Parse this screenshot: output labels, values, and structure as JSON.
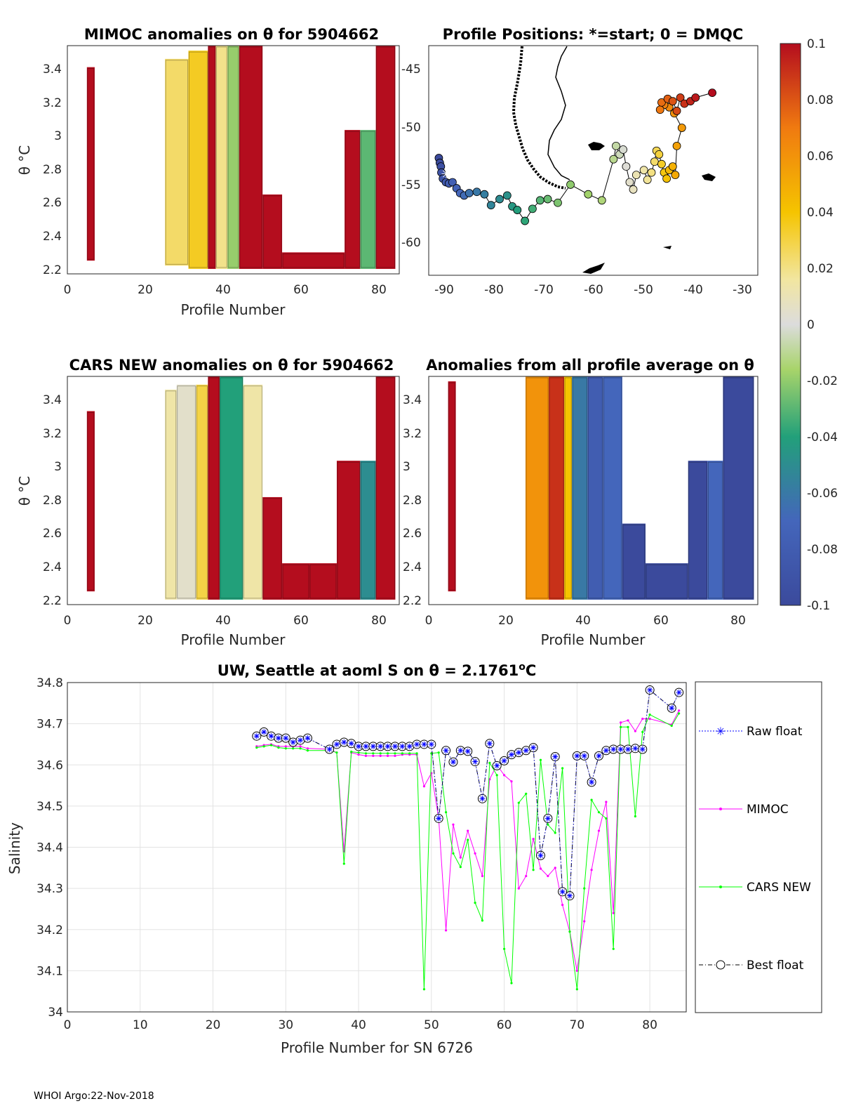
{
  "footer": "WHOI Argo:22-Nov-2018",
  "panels": {
    "mimoc": {
      "title": "MIMOC anomalies on θ  for 5904662",
      "xlabel": "Profile Number",
      "ylabel": "θ °C",
      "xticks": [
        "0",
        "20",
        "40",
        "60",
        "80"
      ],
      "yticks": [
        "3.4",
        "3.2",
        "3",
        "2.8",
        "2.6",
        "2.4",
        "2.2"
      ]
    },
    "map": {
      "title": "Profile Positions: *=start; 0 = DMQC",
      "xticks": [
        "-90",
        "-80",
        "-70",
        "-60",
        "-50",
        "-40",
        "-30"
      ],
      "yticks": [
        "-45",
        "-50",
        "-55",
        "-60"
      ]
    },
    "cars": {
      "title": "CARS NEW anomalies on θ for 5904662",
      "xlabel": "Profile Number",
      "ylabel": "θ °C",
      "xticks": [
        "0",
        "20",
        "40",
        "60",
        "80"
      ],
      "yticks": [
        "3.4",
        "3.2",
        "3",
        "2.8",
        "2.6",
        "2.4",
        "2.2"
      ]
    },
    "avg": {
      "title": "Anomalies from all profile average on θ",
      "xlabel": "Profile Number",
      "xticks": [
        "0",
        "20",
        "40",
        "60",
        "80"
      ],
      "yticks": [
        "3.4",
        "3.2",
        "3",
        "2.8",
        "2.6",
        "2.4",
        "2.2"
      ]
    },
    "colorbar": {
      "ticks": [
        "0.1",
        "0.08",
        "0.06",
        "0.04",
        "0.02",
        "0",
        "-0.02",
        "-0.04",
        "-0.06",
        "-0.08",
        "-0.1"
      ]
    }
  },
  "chart_data": [
    {
      "type": "heatmap",
      "title": "MIMOC anomalies on θ  for 5904662",
      "xlabel": "Profile Number",
      "ylabel": "θ °C",
      "xlim": [
        0,
        85
      ],
      "ylim": [
        2.15,
        3.53
      ],
      "clim": [
        -0.1,
        0.1
      ],
      "columns": [
        {
          "x0": 5,
          "x1": 7,
          "y0": 2.23,
          "y1": 3.4,
          "v": 0.1
        },
        {
          "x0": 25,
          "x1": 31,
          "y0": 2.2,
          "y1": 3.45,
          "v": 0.025
        },
        {
          "x0": 31,
          "x1": 36,
          "y0": 2.18,
          "y1": 3.5,
          "v": 0.035
        },
        {
          "x0": 36,
          "x1": 38,
          "y0": 2.18,
          "y1": 3.53,
          "v": 0.1
        },
        {
          "x0": 38,
          "x1": 41,
          "y0": 2.18,
          "y1": 3.53,
          "v": 0.02
        },
        {
          "x0": 41,
          "x1": 44,
          "y0": 2.18,
          "y1": 3.53,
          "v": -0.02
        },
        {
          "x0": 44,
          "x1": 50,
          "y0": 2.18,
          "y1": 3.53,
          "v": 0.1
        },
        {
          "x0": 50,
          "x1": 55,
          "y0": 2.18,
          "y1": 2.63,
          "v": 0.1
        },
        {
          "x0": 55,
          "x1": 71,
          "y0": 2.18,
          "y1": 2.28,
          "v": 0.1
        },
        {
          "x0": 71,
          "x1": 75,
          "y0": 2.18,
          "y1": 3.02,
          "v": 0.1
        },
        {
          "x0": 75,
          "x1": 79,
          "y0": 2.18,
          "y1": 3.02,
          "v": -0.03
        },
        {
          "x0": 79,
          "x1": 84,
          "y0": 2.18,
          "y1": 3.53,
          "v": 0.1
        }
      ]
    },
    {
      "type": "scatter",
      "title": "Profile Positions: *=start; 0 = DMQC",
      "xlim": [
        -92,
        -27
      ],
      "ylim": [
        -63,
        -44
      ],
      "color_by": "profile number",
      "points": [
        {
          "lon": -90.0,
          "lat": -53.3
        },
        {
          "lon": -89.8,
          "lat": -53.7
        },
        {
          "lon": -89.6,
          "lat": -54.0
        },
        {
          "lon": -89.5,
          "lat": -54.5
        },
        {
          "lon": -89.2,
          "lat": -55.0
        },
        {
          "lon": -88.6,
          "lat": -55.3
        },
        {
          "lon": -88.0,
          "lat": -55.4
        },
        {
          "lon": -87.3,
          "lat": -55.3
        },
        {
          "lon": -86.5,
          "lat": -55.8
        },
        {
          "lon": -85.8,
          "lat": -56.2
        },
        {
          "lon": -85.0,
          "lat": -56.4
        },
        {
          "lon": -84.0,
          "lat": -56.2
        },
        {
          "lon": -82.5,
          "lat": -56.1
        },
        {
          "lon": -81.0,
          "lat": -56.3
        },
        {
          "lon": -79.7,
          "lat": -57.2
        },
        {
          "lon": -78.0,
          "lat": -56.7
        },
        {
          "lon": -76.5,
          "lat": -56.4
        },
        {
          "lon": -75.5,
          "lat": -57.3
        },
        {
          "lon": -74.5,
          "lat": -57.6
        },
        {
          "lon": -73.0,
          "lat": -58.5
        },
        {
          "lon": -71.5,
          "lat": -57.5
        },
        {
          "lon": -70.0,
          "lat": -56.8
        },
        {
          "lon": -68.5,
          "lat": -56.7
        },
        {
          "lon": -66.5,
          "lat": -57.0
        },
        {
          "lon": -64.0,
          "lat": -55.5
        },
        {
          "lon": -60.5,
          "lat": -56.3
        },
        {
          "lon": -57.8,
          "lat": -56.8
        },
        {
          "lon": -55.5,
          "lat": -53.4
        },
        {
          "lon": -55.0,
          "lat": -52.3
        },
        {
          "lon": -54.3,
          "lat": -53.0
        },
        {
          "lon": -53.6,
          "lat": -52.6
        },
        {
          "lon": -53.0,
          "lat": -54.0
        },
        {
          "lon": -52.3,
          "lat": -55.3
        },
        {
          "lon": -51.6,
          "lat": -55.9
        },
        {
          "lon": -51.0,
          "lat": -54.7
        },
        {
          "lon": -49.5,
          "lat": -54.3
        },
        {
          "lon": -48.8,
          "lat": -55.1
        },
        {
          "lon": -48.0,
          "lat": -54.5
        },
        {
          "lon": -47.4,
          "lat": -53.6
        },
        {
          "lon": -47.0,
          "lat": -52.7
        },
        {
          "lon": -46.5,
          "lat": -53.0
        },
        {
          "lon": -46.0,
          "lat": -53.8
        },
        {
          "lon": -45.5,
          "lat": -54.5
        },
        {
          "lon": -45.0,
          "lat": -55.0
        },
        {
          "lon": -44.5,
          "lat": -54.3
        },
        {
          "lon": -43.8,
          "lat": -54.0
        },
        {
          "lon": -43.3,
          "lat": -54.7
        },
        {
          "lon": -43.0,
          "lat": -52.3
        },
        {
          "lon": -42.0,
          "lat": -50.8
        },
        {
          "lon": -43.5,
          "lat": -49.6
        },
        {
          "lon": -44.5,
          "lat": -49.1
        },
        {
          "lon": -45.5,
          "lat": -48.9
        },
        {
          "lon": -46.3,
          "lat": -49.3
        },
        {
          "lon": -46.0,
          "lat": -48.7
        },
        {
          "lon": -44.8,
          "lat": -48.4
        },
        {
          "lon": -43.8,
          "lat": -48.6
        },
        {
          "lon": -43.0,
          "lat": -49.4
        },
        {
          "lon": -42.3,
          "lat": -48.3
        },
        {
          "lon": -41.5,
          "lat": -48.8
        },
        {
          "lon": -40.3,
          "lat": -48.6
        },
        {
          "lon": -39.3,
          "lat": -48.3
        },
        {
          "lon": -36.0,
          "lat": -47.9
        }
      ]
    },
    {
      "type": "heatmap",
      "title": "CARS NEW anomalies on θ for 5904662",
      "xlabel": "Profile Number",
      "ylabel": "θ °C",
      "xlim": [
        0,
        85
      ],
      "ylim": [
        2.15,
        3.53
      ],
      "clim": [
        -0.1,
        0.1
      ],
      "columns": [
        {
          "x0": 5,
          "x1": 7,
          "y0": 2.23,
          "y1": 3.32,
          "v": 0.1
        },
        {
          "x0": 25,
          "x1": 28,
          "y0": 2.18,
          "y1": 3.45,
          "v": 0.015
        },
        {
          "x0": 28,
          "x1": 33,
          "y0": 2.18,
          "y1": 3.48,
          "v": 0.005
        },
        {
          "x0": 33,
          "x1": 36,
          "y0": 2.18,
          "y1": 3.48,
          "v": 0.03
        },
        {
          "x0": 36,
          "x1": 39,
          "y0": 2.18,
          "y1": 3.53,
          "v": 0.1
        },
        {
          "x0": 39,
          "x1": 45,
          "y0": 2.18,
          "y1": 3.53,
          "v": -0.04
        },
        {
          "x0": 45,
          "x1": 50,
          "y0": 2.18,
          "y1": 3.48,
          "v": 0.015
        },
        {
          "x0": 50,
          "x1": 55,
          "y0": 2.18,
          "y1": 2.8,
          "v": 0.1
        },
        {
          "x0": 55,
          "x1": 62,
          "y0": 2.18,
          "y1": 2.4,
          "v": 0.1
        },
        {
          "x0": 62,
          "x1": 69,
          "y0": 2.18,
          "y1": 2.4,
          "v": 0.1
        },
        {
          "x0": 69,
          "x1": 75,
          "y0": 2.18,
          "y1": 3.02,
          "v": 0.1
        },
        {
          "x0": 75,
          "x1": 79,
          "y0": 2.18,
          "y1": 3.02,
          "v": -0.05
        },
        {
          "x0": 79,
          "x1": 84,
          "y0": 2.18,
          "y1": 3.53,
          "v": 0.1
        }
      ]
    },
    {
      "type": "heatmap",
      "title": "Anomalies from all profile average on θ",
      "xlabel": "Profile Number",
      "xlim": [
        0,
        85
      ],
      "ylim": [
        2.15,
        3.53
      ],
      "clim": [
        -0.1,
        0.1
      ],
      "columns": [
        {
          "x0": 5,
          "x1": 7,
          "y0": 2.23,
          "y1": 3.5,
          "v": 0.1
        },
        {
          "x0": 25,
          "x1": 31,
          "y0": 2.18,
          "y1": 3.53,
          "v": 0.06
        },
        {
          "x0": 31,
          "x1": 35,
          "y0": 2.18,
          "y1": 3.53,
          "v": 0.09
        },
        {
          "x0": 35,
          "x1": 37,
          "y0": 2.18,
          "y1": 3.53,
          "v": 0.04
        },
        {
          "x0": 37,
          "x1": 41,
          "y0": 2.18,
          "y1": 3.53,
          "v": -0.06
        },
        {
          "x0": 41,
          "x1": 45,
          "y0": 2.18,
          "y1": 3.53,
          "v": -0.08
        },
        {
          "x0": 45,
          "x1": 50,
          "y0": 2.18,
          "y1": 3.53,
          "v": -0.07
        },
        {
          "x0": 50,
          "x1": 56,
          "y0": 2.18,
          "y1": 2.64,
          "v": -0.1
        },
        {
          "x0": 56,
          "x1": 67,
          "y0": 2.18,
          "y1": 2.4,
          "v": -0.1
        },
        {
          "x0": 67,
          "x1": 72,
          "y0": 2.18,
          "y1": 3.02,
          "v": -0.1
        },
        {
          "x0": 72,
          "x1": 76,
          "y0": 2.18,
          "y1": 3.02,
          "v": -0.07
        },
        {
          "x0": 76,
          "x1": 84,
          "y0": 2.18,
          "y1": 3.53,
          "v": -0.1
        }
      ]
    },
    {
      "type": "line",
      "title": "UW, Seattle at aoml S on θ = 2.1761°C",
      "title_prefix": "UW, Seattle at aoml S on θ = 2.1761",
      "title_sup": "o",
      "title_suffix": "C",
      "xlabel": "Profile Number for SN 6726",
      "ylabel": "Salinity",
      "xlim": [
        0,
        85
      ],
      "ylim": [
        34.0,
        34.8
      ],
      "xticks": [
        "0",
        "10",
        "20",
        "30",
        "40",
        "50",
        "60",
        "70",
        "80"
      ],
      "yticks": [
        "34.8",
        "34.7",
        "34.6",
        "34.5",
        "34.4",
        "34.3",
        "34.2",
        "34.1",
        "34"
      ],
      "legend": [
        "Raw float",
        "MIMOC",
        "CARS NEW",
        "Best float"
      ],
      "x": [
        26,
        27,
        28,
        29,
        30,
        31,
        32,
        33,
        36,
        37,
        38,
        39,
        40,
        41,
        42,
        43,
        44,
        45,
        46,
        47,
        48,
        49,
        50,
        51,
        52,
        53,
        54,
        55,
        56,
        57,
        58,
        59,
        60,
        61,
        62,
        63,
        64,
        65,
        66,
        67,
        68,
        69,
        70,
        71,
        72,
        73,
        74,
        75,
        76,
        77,
        78,
        79,
        80,
        83,
        84
      ],
      "series": [
        {
          "name": "Raw float",
          "color": "#0000ff",
          "values": [
            34.67,
            34.68,
            34.67,
            34.665,
            34.665,
            34.655,
            34.66,
            34.665,
            34.638,
            34.65,
            34.655,
            34.652,
            34.645,
            34.645,
            34.645,
            34.645,
            34.645,
            34.645,
            34.645,
            34.645,
            34.65,
            34.65,
            34.65,
            34.47,
            34.635,
            34.607,
            34.635,
            34.633,
            34.608,
            34.518,
            34.652,
            34.598,
            34.61,
            34.625,
            34.63,
            34.635,
            34.642,
            34.38,
            34.47,
            34.62,
            34.292,
            34.282,
            34.622,
            34.622,
            34.558,
            34.622,
            34.635,
            34.638,
            34.638,
            34.638,
            34.64,
            34.638,
            34.782,
            34.738,
            34.776
          ]
        },
        {
          "name": "MIMOC",
          "color": "#ff00ff",
          "values": [
            34.645,
            34.648,
            34.65,
            34.645,
            34.645,
            34.645,
            34.645,
            34.64,
            34.638,
            34.63,
            34.39,
            34.63,
            34.625,
            34.622,
            34.622,
            34.622,
            34.622,
            34.622,
            34.625,
            34.625,
            34.625,
            34.548,
            34.58,
            34.47,
            34.198,
            34.455,
            34.375,
            34.44,
            34.385,
            34.33,
            34.565,
            34.6,
            34.575,
            34.56,
            34.3,
            34.33,
            34.42,
            34.348,
            34.33,
            34.35,
            34.26,
            34.195,
            34.1,
            34.22,
            34.345,
            34.44,
            34.51,
            34.24,
            34.703,
            34.708,
            34.682,
            34.712,
            34.712,
            34.698,
            34.732
          ]
        },
        {
          "name": "CARS NEW",
          "color": "#00ff00",
          "values": [
            34.642,
            34.645,
            34.648,
            34.642,
            34.64,
            34.64,
            34.64,
            34.635,
            34.635,
            34.63,
            34.36,
            34.632,
            34.63,
            34.628,
            34.628,
            34.628,
            34.628,
            34.628,
            34.628,
            34.628,
            34.628,
            34.055,
            34.628,
            34.63,
            34.485,
            34.385,
            34.352,
            34.418,
            34.265,
            34.222,
            34.605,
            34.575,
            34.153,
            34.07,
            34.508,
            34.53,
            34.345,
            34.612,
            34.455,
            34.435,
            34.592,
            34.195,
            34.055,
            34.3,
            34.515,
            34.485,
            34.47,
            34.153,
            34.692,
            34.692,
            34.475,
            34.68,
            34.722,
            34.695,
            34.725
          ]
        },
        {
          "name": "Best float",
          "color": "#000000",
          "values": [
            34.67,
            34.68,
            34.67,
            34.665,
            34.665,
            34.655,
            34.66,
            34.665,
            34.638,
            34.65,
            34.655,
            34.652,
            34.645,
            34.645,
            34.645,
            34.645,
            34.645,
            34.645,
            34.645,
            34.645,
            34.65,
            34.65,
            34.65,
            34.47,
            34.635,
            34.607,
            34.635,
            34.633,
            34.608,
            34.518,
            34.652,
            34.598,
            34.61,
            34.625,
            34.63,
            34.635,
            34.642,
            34.38,
            34.47,
            34.62,
            34.292,
            34.282,
            34.622,
            34.622,
            34.558,
            34.622,
            34.635,
            34.638,
            34.638,
            34.638,
            34.64,
            34.638,
            34.782,
            34.738,
            34.776
          ]
        }
      ]
    }
  ]
}
